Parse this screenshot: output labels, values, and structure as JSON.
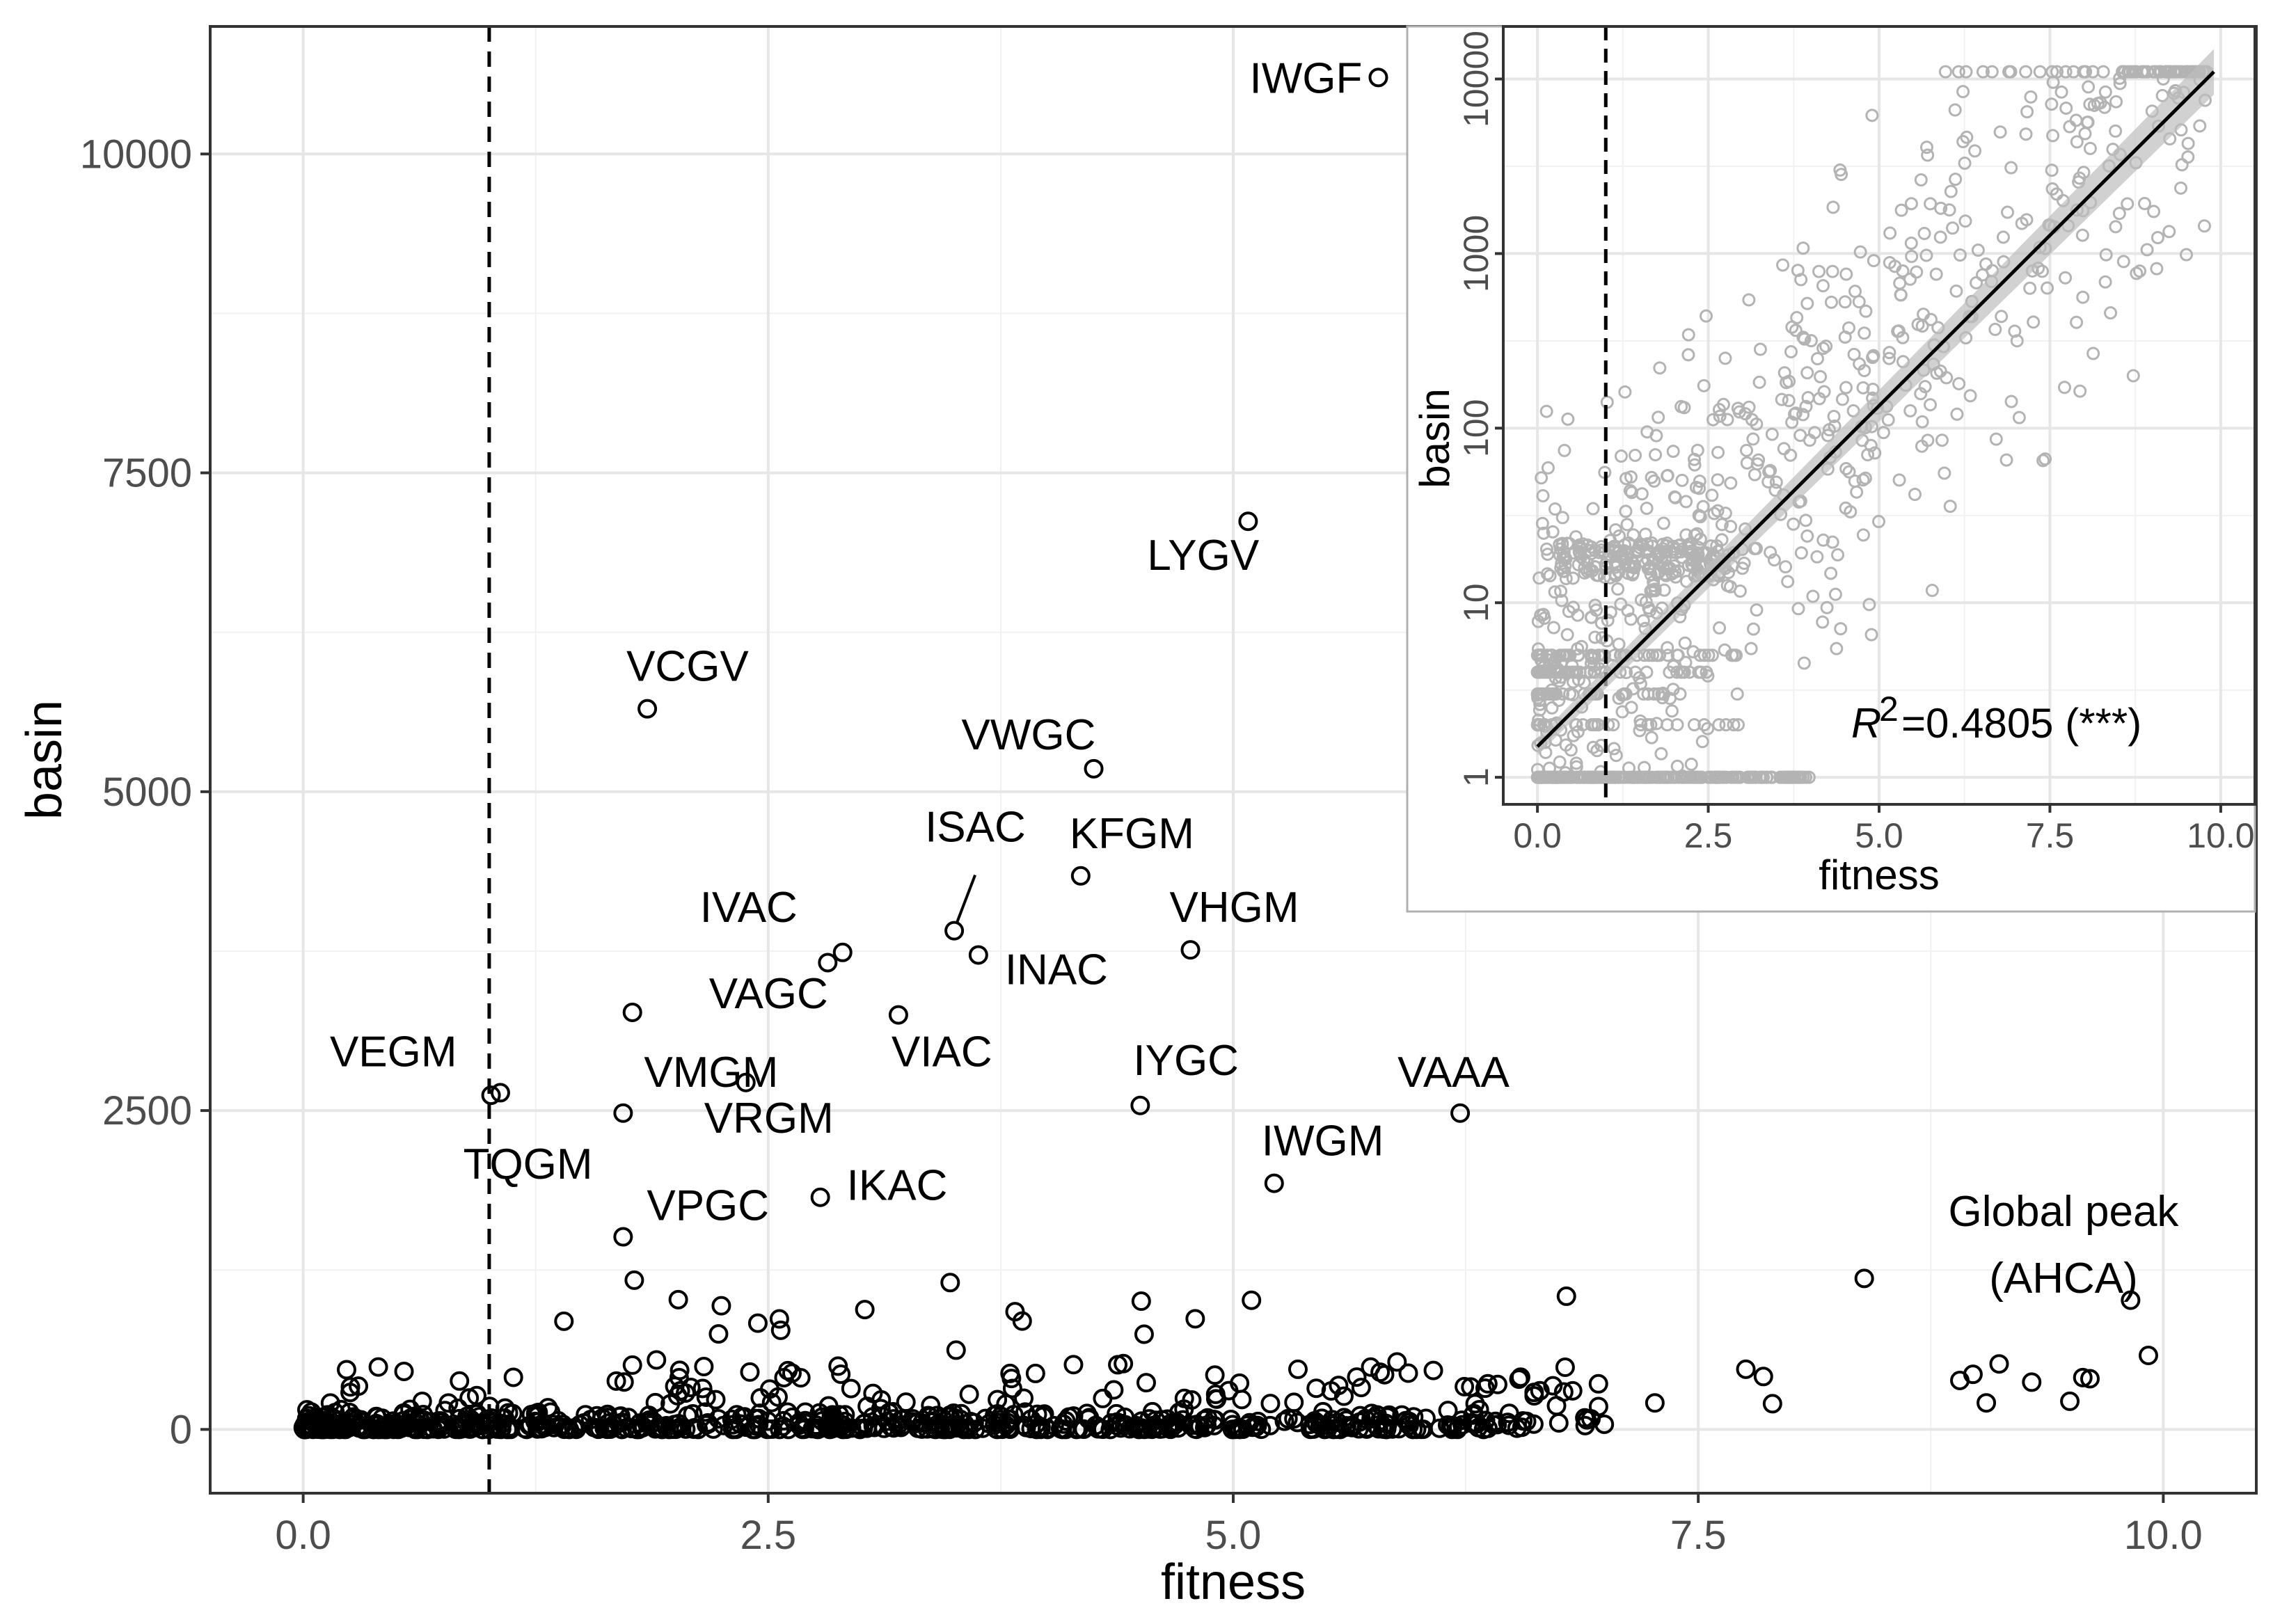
{
  "chart_data": [
    {
      "type": "scatter",
      "name": "main",
      "xlabel": "fitness",
      "ylabel": "basin",
      "xlim": [
        -0.5,
        10.5
      ],
      "ylim": [
        -500,
        11000
      ],
      "xticks": [
        0.0,
        2.5,
        5.0,
        7.5,
        10.0
      ],
      "xtick_labels": [
        "0.0",
        "2.5",
        "5.0",
        "7.5",
        "10.0"
      ],
      "yticks": [
        0,
        2500,
        5000,
        7500,
        10000
      ],
      "ytick_labels": [
        "0",
        "2500",
        "5000",
        "7500",
        "10000"
      ],
      "threshold_x": 1.0,
      "annotation": {
        "line1": "Global peak",
        "line2": "(AHCA)"
      },
      "labeled_points": [
        {
          "label": "IWGF",
          "x": 5.78,
          "y": 10600
        },
        {
          "label": "LYGV",
          "x": 5.08,
          "y": 7120
        },
        {
          "label": "VCGV",
          "x": 1.85,
          "y": 5650
        },
        {
          "label": "VWGC",
          "x": 4.25,
          "y": 5180
        },
        {
          "label": "KFGM",
          "x": 4.18,
          "y": 4340
        },
        {
          "label": "ISAC",
          "x": 3.5,
          "y": 3910
        },
        {
          "label": "IVAC",
          "x": 2.9,
          "y": 3740
        },
        {
          "label": "VHGM",
          "x": 4.77,
          "y": 3760
        },
        {
          "label": "INAC",
          "x": 3.63,
          "y": 3720
        },
        {
          "label": "VAGC",
          "x": 1.77,
          "y": 3270
        },
        {
          "label": "VIAC",
          "x": 3.2,
          "y": 3250
        },
        {
          "label": "VEGM",
          "x": 1.06,
          "y": 2640
        },
        {
          "label": "VMGM",
          "x": 1.72,
          "y": 2480
        },
        {
          "label": "VRGM",
          "x": 2.38,
          "y": 2720
        },
        {
          "label": "IYGC",
          "x": 4.5,
          "y": 2540
        },
        {
          "label": "VAAA",
          "x": 6.22,
          "y": 2480
        },
        {
          "label": "TQGM",
          "x": 1.01,
          "y": 2620
        },
        {
          "label": "IWGM",
          "x": 5.22,
          "y": 1930
        },
        {
          "label": "IKAC",
          "x": 2.78,
          "y": 1820
        },
        {
          "label": "VPGC",
          "x": 1.72,
          "y": 1510
        }
      ],
      "extra_points": [
        {
          "x": 2.82,
          "y": 3660
        },
        {
          "x": 1.78,
          "y": 1170
        },
        {
          "x": 9.92,
          "y": 580
        }
      ],
      "bulk_points_note": "approximately 1000 genotypes near basin 0-1500, shown as scattered open circles"
    },
    {
      "type": "scatter",
      "name": "inset",
      "xlabel": "fitness",
      "ylabel": "basin",
      "yscale": "log10",
      "xlim": [
        -0.5,
        10.5
      ],
      "ylim": [
        0.7,
        20000
      ],
      "xticks": [
        0.0,
        2.5,
        5.0,
        7.5,
        10.0
      ],
      "xtick_labels": [
        "0.0",
        "2.5",
        "5.0",
        "7.5",
        "10.0"
      ],
      "yticks": [
        1,
        10,
        100,
        1000,
        10000
      ],
      "ytick_labels": [
        "1",
        "10",
        "100",
        "1000",
        "10000"
      ],
      "threshold_x": 1.0,
      "fit_line": {
        "x": [
          0.0,
          9.9
        ],
        "y": [
          1.5,
          11000
        ]
      },
      "r2_label": "=0.4805 (***)",
      "r2_symbol": "R",
      "r2_sup": "2"
    }
  ]
}
